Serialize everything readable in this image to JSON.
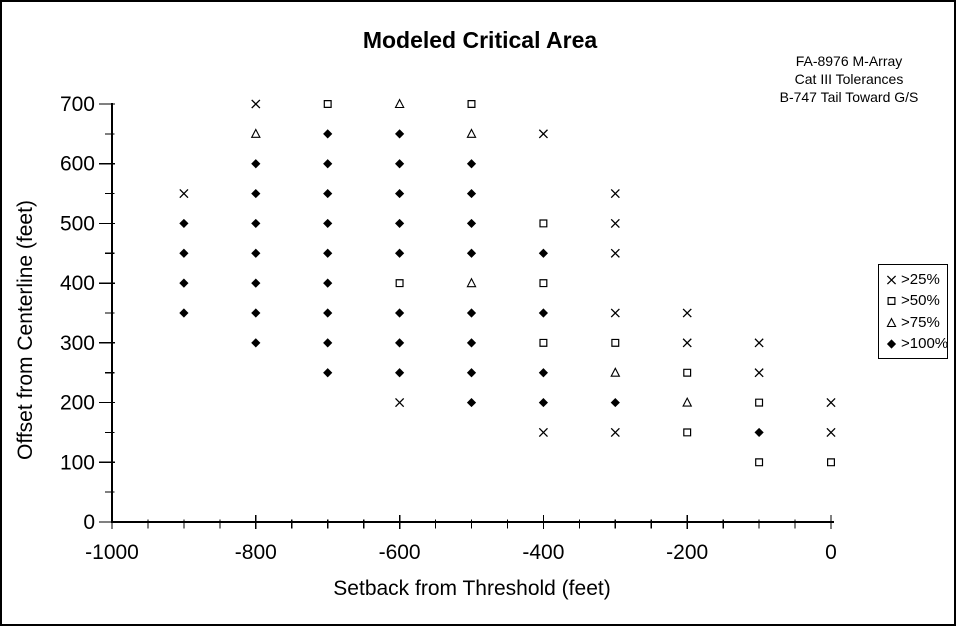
{
  "title": "Modeled Critical Area",
  "colors": {
    "foreground": "#000000",
    "background": "#ffffff"
  },
  "chart_data": {
    "type": "scatter",
    "title": "Modeled Critical Area",
    "xlabel": "Setback from Threshold (feet)",
    "ylabel": "Offset from Centerline (feet)",
    "xlim": [
      -1000,
      0
    ],
    "ylim": [
      0,
      700
    ],
    "x_major_ticks": [
      -1000,
      -800,
      -600,
      -400,
      -200,
      0
    ],
    "x_minor_step": 50,
    "y_major_ticks": [
      0,
      100,
      200,
      300,
      400,
      500,
      600,
      700
    ],
    "y_minor_step": 50,
    "grid": "off",
    "legend_position": "right-outside",
    "annotations": [
      "FA-8976 M-Array",
      "Cat III Tolerances",
      "B-747 Tail Toward G/S"
    ],
    "series": [
      {
        "name": ">25%",
        "marker": "x",
        "points": [
          [
            -900,
            550
          ],
          [
            -800,
            700
          ],
          [
            -600,
            200
          ],
          [
            -400,
            650
          ],
          [
            -400,
            150
          ],
          [
            -300,
            550
          ],
          [
            -300,
            500
          ],
          [
            -300,
            450
          ],
          [
            -300,
            350
          ],
          [
            -300,
            150
          ],
          [
            -200,
            350
          ],
          [
            -200,
            300
          ],
          [
            -100,
            300
          ],
          [
            -100,
            250
          ],
          [
            0,
            200
          ],
          [
            0,
            150
          ]
        ]
      },
      {
        "name": ">50%",
        "marker": "square",
        "points": [
          [
            -700,
            700
          ],
          [
            -600,
            400
          ],
          [
            -500,
            700
          ],
          [
            -400,
            500
          ],
          [
            -400,
            400
          ],
          [
            -400,
            300
          ],
          [
            -300,
            300
          ],
          [
            -200,
            250
          ],
          [
            -200,
            150
          ],
          [
            -100,
            200
          ],
          [
            -100,
            100
          ],
          [
            0,
            100
          ]
        ]
      },
      {
        "name": ">75%",
        "marker": "triangle",
        "points": [
          [
            -800,
            650
          ],
          [
            -600,
            700
          ],
          [
            -500,
            650
          ],
          [
            -500,
            400
          ],
          [
            -300,
            250
          ],
          [
            -200,
            200
          ]
        ]
      },
      {
        "name": ">100%",
        "marker": "diamond",
        "points": [
          [
            -900,
            500
          ],
          [
            -900,
            450
          ],
          [
            -900,
            400
          ],
          [
            -900,
            350
          ],
          [
            -800,
            600
          ],
          [
            -800,
            550
          ],
          [
            -800,
            500
          ],
          [
            -800,
            450
          ],
          [
            -800,
            400
          ],
          [
            -800,
            350
          ],
          [
            -800,
            300
          ],
          [
            -700,
            650
          ],
          [
            -700,
            600
          ],
          [
            -700,
            550
          ],
          [
            -700,
            500
          ],
          [
            -700,
            450
          ],
          [
            -700,
            400
          ],
          [
            -700,
            350
          ],
          [
            -700,
            300
          ],
          [
            -700,
            250
          ],
          [
            -600,
            650
          ],
          [
            -600,
            600
          ],
          [
            -600,
            550
          ],
          [
            -600,
            500
          ],
          [
            -600,
            450
          ],
          [
            -600,
            350
          ],
          [
            -600,
            300
          ],
          [
            -600,
            250
          ],
          [
            -500,
            600
          ],
          [
            -500,
            550
          ],
          [
            -500,
            500
          ],
          [
            -500,
            450
          ],
          [
            -500,
            350
          ],
          [
            -500,
            300
          ],
          [
            -500,
            250
          ],
          [
            -500,
            200
          ],
          [
            -400,
            450
          ],
          [
            -400,
            350
          ],
          [
            -400,
            250
          ],
          [
            -400,
            200
          ],
          [
            -300,
            200
          ],
          [
            -100,
            150
          ]
        ]
      }
    ]
  }
}
